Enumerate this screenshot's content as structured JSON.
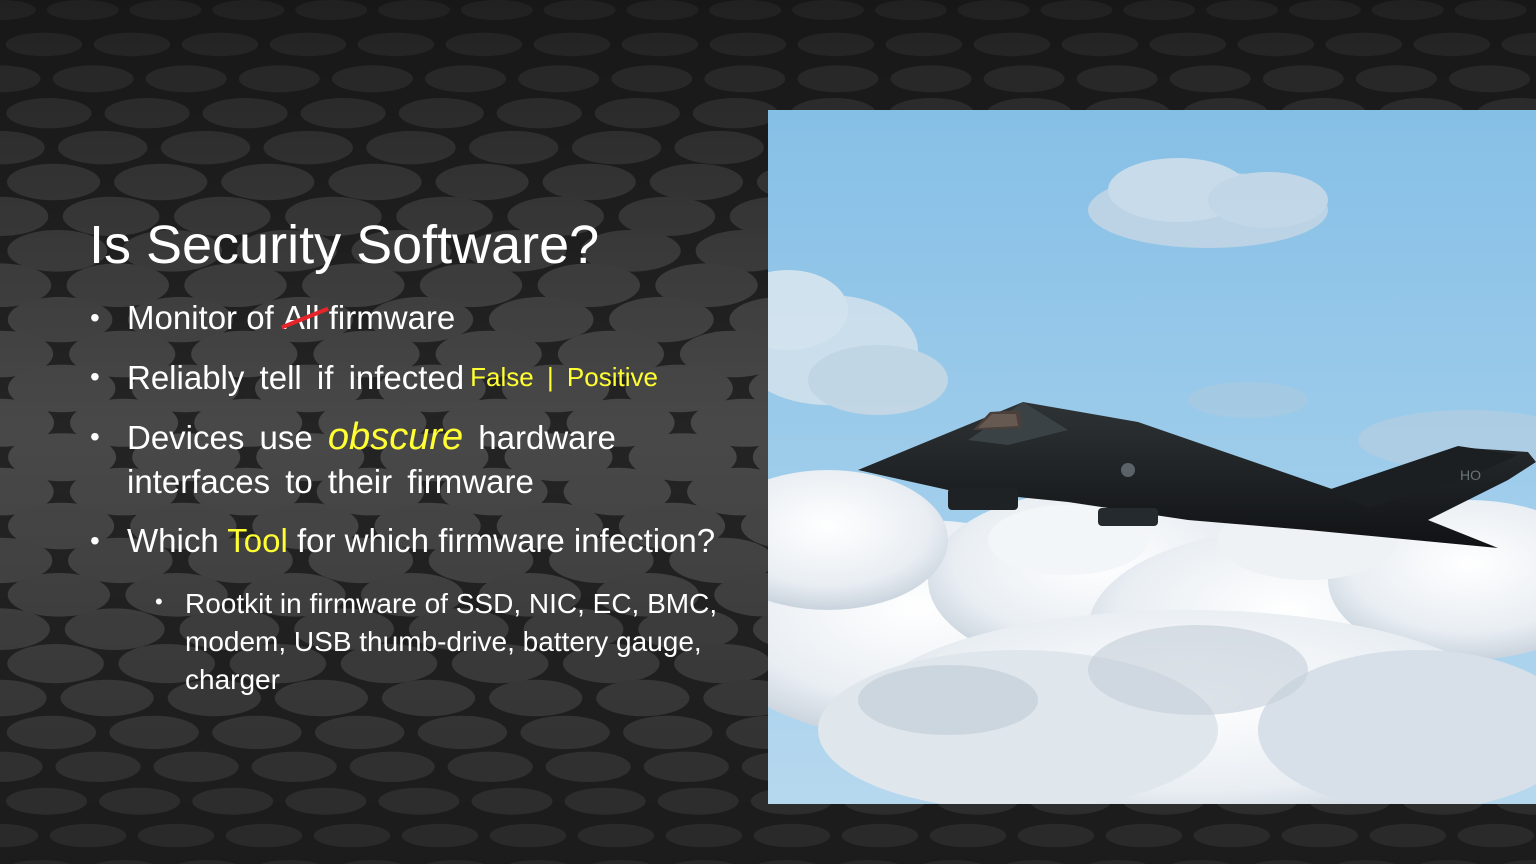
{
  "slide": {
    "title": "Is Security Software?",
    "bullets": [
      {
        "before": "Monitor of ",
        "struck": "All",
        "after": " firmware"
      },
      {
        "text": "Reliably tell if infected",
        "annotation": "False | Positive"
      },
      {
        "before": "Devices use ",
        "emphasis": "obscure",
        "after": " hardware interfaces to their firmware"
      },
      {
        "before": "Which ",
        "highlight": "Tool",
        "after": " for which firmware infection?",
        "sub": [
          "Rootkit in firmware of SSD, NIC, EC, BMC, modem, USB thumb-drive, battery gauge, charger"
        ]
      }
    ]
  },
  "photo": {
    "subject": "stealth-aircraft-in-sky",
    "tail_marking": "HO"
  },
  "colors": {
    "text": "#ffffff",
    "highlight": "#ffff33",
    "strike": "#e8242b",
    "sky": "#8cc2e6"
  }
}
